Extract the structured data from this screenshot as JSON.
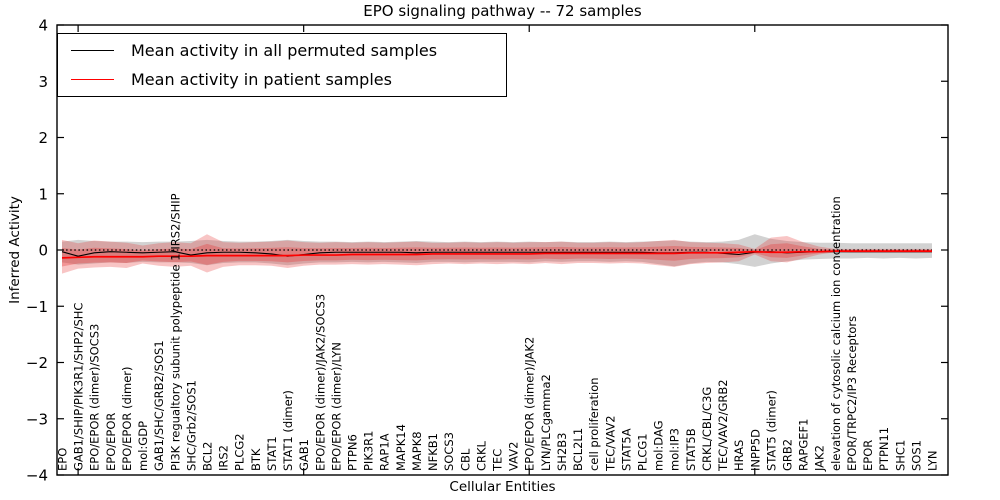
{
  "title": "EPO signaling pathway -- 72 samples",
  "ylabel": "Inferred Activity",
  "xlabel": "Cellular Entities",
  "legend": {
    "permuted": "Mean activity in all permuted samples",
    "patient": "Mean activity in patient samples"
  },
  "colors": {
    "permuted_line": "#000000",
    "patient_line": "#ff0000",
    "permuted_band": "#8a8a8a",
    "patient_band": "#e62e2e",
    "axis": "#000000"
  },
  "chart_data": {
    "type": "line",
    "title": "EPO signaling pathway -- 72 samples",
    "xlabel": "Cellular Entities",
    "ylabel": "Inferred Activity",
    "ylim": [
      -4,
      4
    ],
    "yticks": [
      -4,
      -3,
      -2,
      -1,
      0,
      1,
      2,
      3,
      4
    ],
    "xticks_at": [
      1,
      15,
      29,
      43
    ],
    "grid": false,
    "legend_position": "upper left",
    "categories": [
      "EPO",
      "GAB1/SHIP/PIK3R1/SHP2/SHC",
      "EPO/EPOR (dimer)/SOCS3",
      "EPO/EPOR",
      "EPO/EPOR (dimer)",
      "mol:GDP",
      "GAB1/SHC/GRB2/SOS1",
      "PI3K regualtory subunit polypeptide 1/IRS2/SHIP",
      "SHC/Grb2/SOS1",
      "BCL2",
      "IRS2",
      "PLCG2",
      "BTK",
      "STAT1",
      "STAT1 (dimer)",
      "GAB1",
      "EPO/EPOR (dimer)/JAK2/SOCS3",
      "EPO/EPOR (dimer)/LYN",
      "PTPN6",
      "PIK3R1",
      "RAP1A",
      "MAPK14",
      "MAPK8",
      "NFKB1",
      "SOCS3",
      "CBL",
      "CRKL",
      "TEC",
      "VAV2",
      "EPO/EPOR (dimer)/JAK2",
      "LYN/PLCgamma2",
      "SH2B3",
      "BCL2L1",
      "cell proliferation",
      "TEC/VAV2",
      "STAT5A",
      "PLCG1",
      "mol:DAG",
      "mol:IP3",
      "STAT5B",
      "CRKL/CBL/C3G",
      "TEC/VAV2/GRB2",
      "HRAS",
      "INPP5D",
      "STAT5 (dimer)",
      "GRB2",
      "RAPGEF1",
      "JAK2",
      "elevation of cytosolic calcium ion concentration",
      "EPOR/TRPC2/IP3 Receptors",
      "EPOR",
      "PTPN11",
      "SHC1",
      "SOS1",
      "LYN"
    ],
    "series": [
      {
        "name": "Zero reference (dotted)",
        "style": "dotted",
        "color": "#000000",
        "constant": 0
      },
      {
        "name": "Mean activity in all permuted samples",
        "style": "solid",
        "color": "#000000",
        "values": [
          -0.03,
          -0.11,
          -0.05,
          -0.03,
          -0.04,
          -0.05,
          -0.04,
          -0.03,
          -0.09,
          -0.05,
          -0.04,
          -0.04,
          -0.05,
          -0.07,
          -0.11,
          -0.08,
          -0.05,
          -0.04,
          -0.04,
          -0.04,
          -0.04,
          -0.04,
          -0.05,
          -0.04,
          -0.04,
          -0.04,
          -0.04,
          -0.04,
          -0.04,
          -0.04,
          -0.04,
          -0.04,
          -0.04,
          -0.04,
          -0.04,
          -0.04,
          -0.04,
          -0.05,
          -0.05,
          -0.04,
          -0.04,
          -0.06,
          -0.08,
          -0.04,
          -0.03,
          -0.05,
          -0.04,
          -0.03,
          -0.03,
          -0.03,
          -0.03,
          -0.03,
          -0.03,
          -0.03,
          -0.03
        ]
      },
      {
        "name": "Mean activity in patient samples",
        "style": "solid",
        "color": "#ff0000",
        "values": [
          -0.14,
          -0.13,
          -0.12,
          -0.12,
          -0.12,
          -0.12,
          -0.11,
          -0.11,
          -0.11,
          -0.1,
          -0.1,
          -0.1,
          -0.1,
          -0.1,
          -0.1,
          -0.09,
          -0.09,
          -0.09,
          -0.08,
          -0.08,
          -0.08,
          -0.08,
          -0.08,
          -0.07,
          -0.07,
          -0.07,
          -0.07,
          -0.07,
          -0.07,
          -0.07,
          -0.06,
          -0.06,
          -0.06,
          -0.06,
          -0.06,
          -0.06,
          -0.06,
          -0.06,
          -0.06,
          -0.05,
          -0.05,
          -0.05,
          -0.04,
          -0.03,
          -0.04,
          -0.04,
          -0.03,
          -0.03,
          -0.02,
          -0.02,
          -0.02,
          -0.02,
          -0.02,
          -0.02,
          -0.02
        ]
      }
    ],
    "bands": [
      {
        "name": "Permuted samples spread",
        "color": "#8a8a8a",
        "opacity": 0.38,
        "upper": [
          0.15,
          0.18,
          0.16,
          0.15,
          0.15,
          0.14,
          0.15,
          0.15,
          0.16,
          0.18,
          0.16,
          0.15,
          0.15,
          0.16,
          0.18,
          0.16,
          0.15,
          0.15,
          0.14,
          0.15,
          0.14,
          0.15,
          0.16,
          0.15,
          0.14,
          0.15,
          0.14,
          0.15,
          0.14,
          0.15,
          0.14,
          0.15,
          0.14,
          0.14,
          0.15,
          0.14,
          0.15,
          0.16,
          0.17,
          0.15,
          0.14,
          0.15,
          0.18,
          0.28,
          0.2,
          0.16,
          0.14,
          0.13,
          0.13,
          0.12,
          0.12,
          0.12,
          0.12,
          0.12,
          0.12
        ],
        "lower": [
          -0.22,
          -0.26,
          -0.24,
          -0.22,
          -0.23,
          -0.21,
          -0.22,
          -0.22,
          -0.23,
          -0.27,
          -0.23,
          -0.22,
          -0.22,
          -0.24,
          -0.27,
          -0.24,
          -0.22,
          -0.22,
          -0.21,
          -0.22,
          -0.21,
          -0.22,
          -0.23,
          -0.21,
          -0.21,
          -0.22,
          -0.21,
          -0.21,
          -0.21,
          -0.22,
          -0.2,
          -0.21,
          -0.2,
          -0.2,
          -0.21,
          -0.2,
          -0.21,
          -0.25,
          -0.29,
          -0.24,
          -0.21,
          -0.22,
          -0.25,
          -0.3,
          -0.24,
          -0.2,
          -0.17,
          -0.16,
          -0.15,
          -0.15,
          -0.14,
          -0.15,
          -0.14,
          -0.15,
          -0.14
        ]
      },
      {
        "name": "Patient samples spread",
        "color": "#e62e2e",
        "opacity": 0.28,
        "upper": [
          0.18,
          0.12,
          0.17,
          0.15,
          0.13,
          0.08,
          0.12,
          0.14,
          0.12,
          0.28,
          0.14,
          0.13,
          0.14,
          0.15,
          0.17,
          0.14,
          0.13,
          0.14,
          0.13,
          0.14,
          0.13,
          0.14,
          0.15,
          0.13,
          0.13,
          0.14,
          0.13,
          0.14,
          0.13,
          0.14,
          0.14,
          0.15,
          0.13,
          0.13,
          0.14,
          0.13,
          0.14,
          0.16,
          0.18,
          0.14,
          0.13,
          0.12,
          0.1,
          0.02,
          0.22,
          0.25,
          0.14,
          0.06,
          0.02,
          0.02,
          0.02,
          0.02,
          0.02,
          0.02,
          0.02
        ],
        "lower": [
          -0.42,
          -0.33,
          -0.31,
          -0.3,
          -0.32,
          -0.24,
          -0.28,
          -0.3,
          -0.28,
          -0.4,
          -0.3,
          -0.27,
          -0.27,
          -0.28,
          -0.32,
          -0.28,
          -0.26,
          -0.26,
          -0.25,
          -0.26,
          -0.25,
          -0.26,
          -0.27,
          -0.25,
          -0.24,
          -0.25,
          -0.24,
          -0.25,
          -0.24,
          -0.25,
          -0.23,
          -0.25,
          -0.23,
          -0.23,
          -0.24,
          -0.23,
          -0.24,
          -0.27,
          -0.3,
          -0.25,
          -0.23,
          -0.22,
          -0.2,
          -0.08,
          -0.2,
          -0.22,
          -0.15,
          -0.08,
          -0.04,
          -0.05,
          -0.05,
          -0.05,
          -0.05,
          -0.05,
          -0.05
        ]
      }
    ]
  }
}
